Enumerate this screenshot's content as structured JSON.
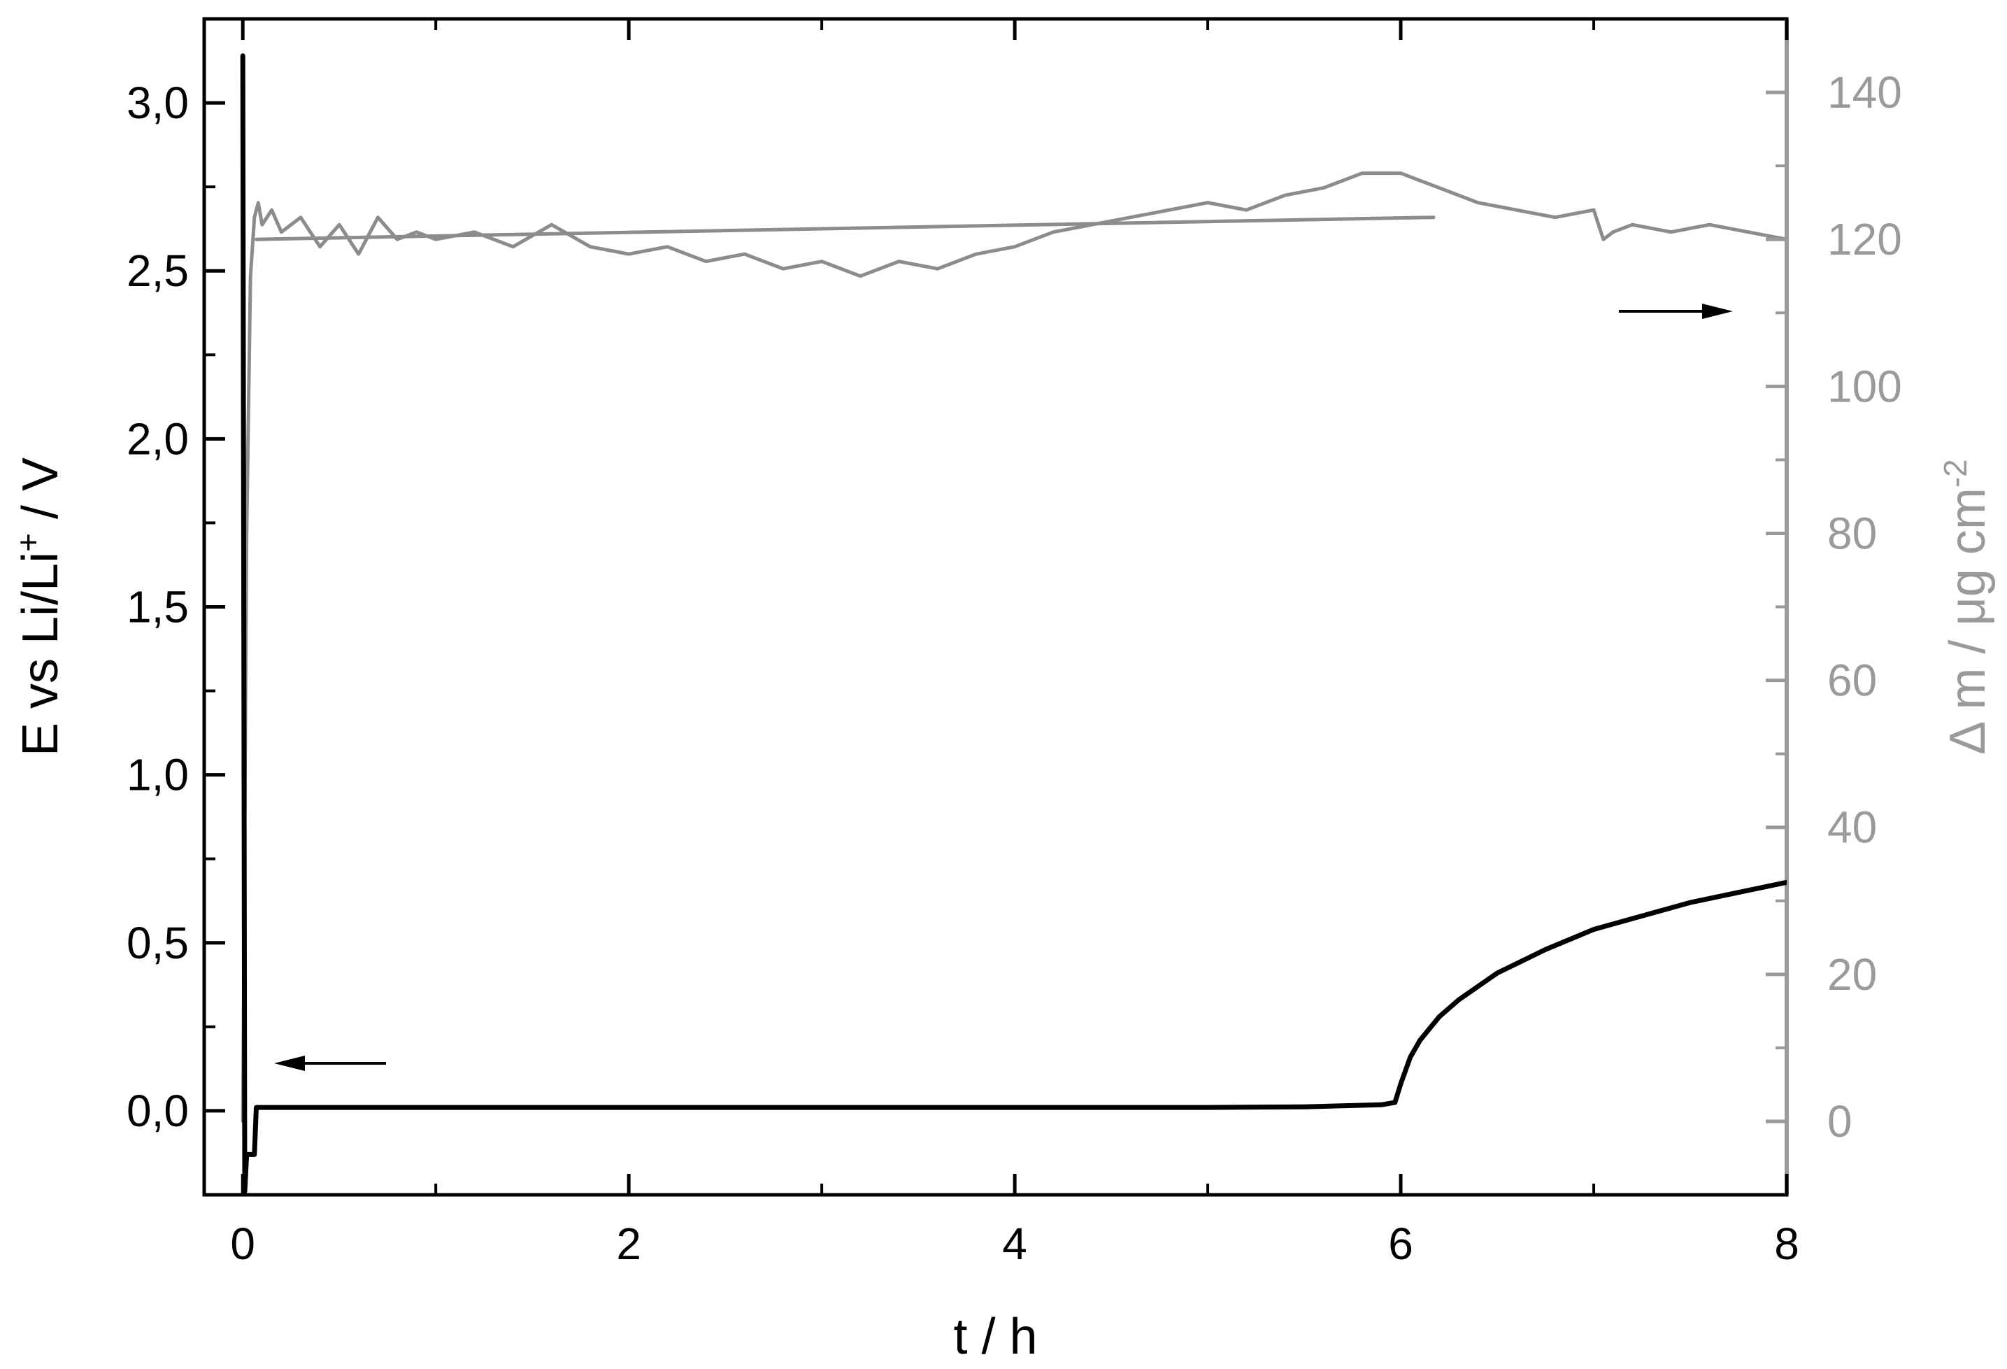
{
  "chart_data": {
    "type": "line",
    "title": "",
    "xlabel": "t / h",
    "ylabel_left": {
      "text": "E vs Li/Li",
      "sup": "+",
      "suffix": " / V"
    },
    "ylabel_right": {
      "text": "Δ m / μg cm",
      "sup": "-2"
    },
    "xlim": [
      -0.2,
      8
    ],
    "ylim_left": [
      -0.25,
      3.25
    ],
    "ylim_right": [
      -10,
      150
    ],
    "x_ticks": [
      0,
      2,
      4,
      6,
      8
    ],
    "x_tick_labels": [
      "0",
      "2",
      "4",
      "6",
      "8"
    ],
    "y_left_ticks": [
      0,
      0.5,
      1.0,
      1.5,
      2.0,
      2.5,
      3.0
    ],
    "y_left_tick_labels": [
      "0,0",
      "0,5",
      "1,0",
      "1,5",
      "2,0",
      "2,5",
      "3,0"
    ],
    "y_right_ticks": [
      0,
      20,
      40,
      60,
      80,
      100,
      120,
      140
    ],
    "y_right_tick_labels": [
      "0",
      "20",
      "40",
      "60",
      "80",
      "100",
      "120",
      "140"
    ],
    "grid": false,
    "colors": {
      "potential": "#000000",
      "mass": "#8c8c8c",
      "right_axis": "#9a9a9a"
    },
    "series": [
      {
        "axis": "left",
        "color": "#000000",
        "x": [
          0,
          0.005,
          0.01,
          0.02,
          0.03,
          0.06,
          0.07,
          0.5,
          1,
          2,
          3,
          4,
          5,
          5.5,
          5.9,
          5.97,
          6.0,
          6.05,
          6.1,
          6.2,
          6.3,
          6.5,
          6.75,
          7,
          7.25,
          7.5,
          7.75,
          8
        ],
        "y": [
          3.14,
          1.5,
          -0.24,
          -0.13,
          -0.13,
          -0.13,
          0.01,
          0.01,
          0.01,
          0.01,
          0.01,
          0.01,
          0.01,
          0.012,
          0.018,
          0.025,
          0.08,
          0.16,
          0.21,
          0.28,
          0.33,
          0.41,
          0.48,
          0.54,
          0.58,
          0.62,
          0.65,
          0.68
        ]
      },
      {
        "axis": "right",
        "color": "#8c8c8c",
        "x": [
          0,
          0.02,
          0.04,
          0.06,
          0.08,
          0.1,
          0.15,
          0.2,
          0.3,
          0.4,
          0.5,
          0.6,
          0.7,
          0.8,
          0.9,
          1.0,
          1.2,
          1.4,
          1.6,
          1.8,
          2.0,
          2.2,
          2.4,
          2.6,
          2.8,
          3.0,
          3.2,
          3.4,
          3.6,
          3.8,
          4.0,
          4.2,
          4.4,
          4.6,
          4.8,
          5.0,
          5.2,
          5.4,
          5.6,
          5.8,
          6.0,
          6.2,
          6.4,
          6.6,
          6.8,
          7.0,
          7.05,
          7.1,
          7.2,
          7.4,
          7.6,
          7.8,
          8.0
        ],
        "y": [
          0,
          80,
          115,
          123,
          125,
          122,
          124,
          121,
          123,
          119,
          122,
          118,
          123,
          120,
          121,
          120,
          121,
          119,
          122,
          119,
          118,
          119,
          117,
          118,
          116,
          117,
          115,
          117,
          116,
          118,
          119,
          121,
          122,
          123,
          124,
          125,
          124,
          126,
          127,
          129,
          129,
          127,
          125,
          124,
          123,
          124,
          120,
          121,
          122,
          121,
          122,
          121,
          120
        ]
      },
      {
        "axis": "right",
        "color": "#8c8c8c",
        "x": [
          0.07,
          6.17
        ],
        "y": [
          120,
          123
        ]
      }
    ]
  }
}
